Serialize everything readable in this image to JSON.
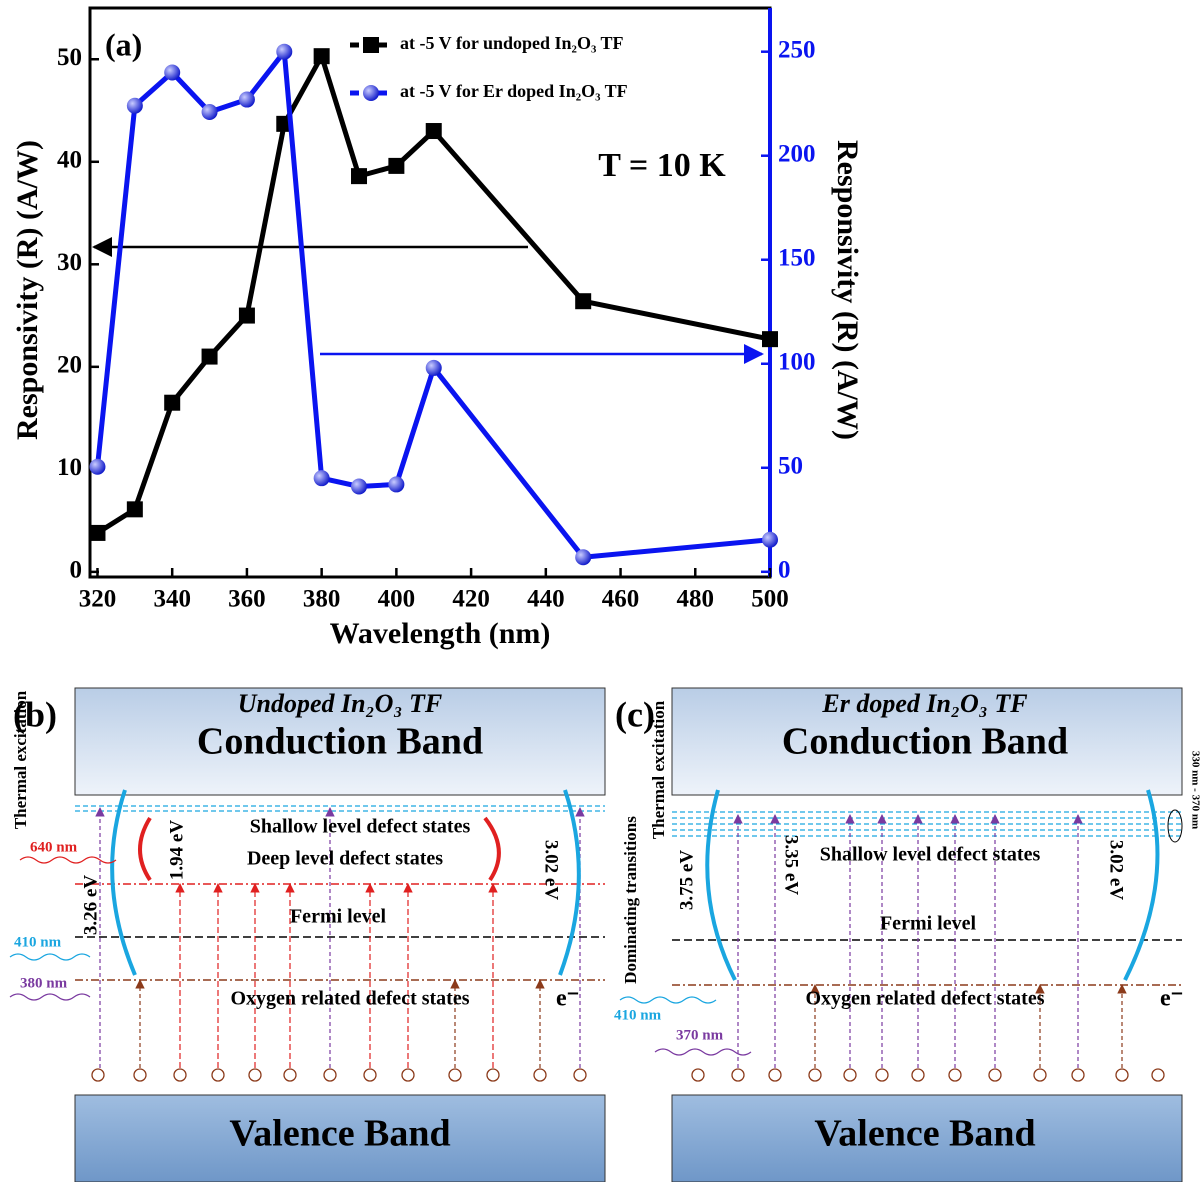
{
  "chart_data": {
    "type": "line",
    "panel_label": "(a)",
    "annotation": "T = 10 K",
    "x_label": "Wavelength (nm)",
    "y_label": "Responsivity (R) (A/W)",
    "y2_label": "Responsivity (R) (A/W)",
    "x": [
      320,
      330,
      340,
      350,
      360,
      370,
      380,
      390,
      400,
      410,
      450,
      500
    ],
    "series": [
      {
        "name": "at -5 V for undoped In₂O₃ TF",
        "color": "#000000",
        "marker": "square",
        "values": [
          3.8,
          6.1,
          16.5,
          21,
          25,
          43.7,
          50.3,
          38.6,
          39.6,
          43,
          26.4,
          22.7
        ]
      },
      {
        "name": "at -5 V for Er doped In₂O₃ TF",
        "color": "#0a14f0",
        "marker": "circle",
        "axis": "y2",
        "values": [
          50.5,
          224,
          240,
          221,
          227,
          250,
          45,
          41,
          42,
          98,
          7,
          15.4
        ]
      }
    ],
    "xlim": [
      318,
      500
    ],
    "xticks": [
      320,
      340,
      360,
      380,
      400,
      420,
      440,
      460,
      480,
      500
    ],
    "ylim": [
      -0.5,
      55
    ],
    "yticks": [
      0,
      10,
      20,
      30,
      40,
      50
    ],
    "y2lim": [
      -2.5,
      271
    ],
    "y2ticks": [
      0,
      50,
      100,
      150,
      200,
      250
    ],
    "legend": "top-right"
  },
  "diagram_b": {
    "panel_label": "(b)",
    "title": "Undoped In₂O₃ TF",
    "conduction_band": "Conduction Band",
    "valence_band": "Valence Band",
    "thermal": "Thermal excitation",
    "shallow": "Shallow level defect states",
    "deep": "Deep level defect states",
    "fermi": "Fermi level",
    "oxygen": "Oxygen related defect states",
    "electron": "e⁻",
    "wavelengths": [
      "640 nm",
      "410 nm",
      "380 nm"
    ],
    "energies": [
      "3.26 eV",
      "1.94 eV",
      "3.02 eV"
    ]
  },
  "diagram_c": {
    "panel_label": "(c)",
    "title": "Er doped In₂O₃ TF",
    "conduction_band": "Conduction Band",
    "valence_band": "Valence Band",
    "thermal": "Thermal excitation",
    "dominating": "Dominating transitions",
    "shallow": "Shallow level defect states",
    "fermi": "Fermi level",
    "oxygen": "Oxygen related defect states",
    "electron": "e⁻",
    "range": "330 nm - 370 nm",
    "wavelengths": [
      "410 nm",
      "370 nm"
    ],
    "energies": [
      "3.75 eV",
      "3.35 eV",
      "3.02 eV"
    ]
  }
}
